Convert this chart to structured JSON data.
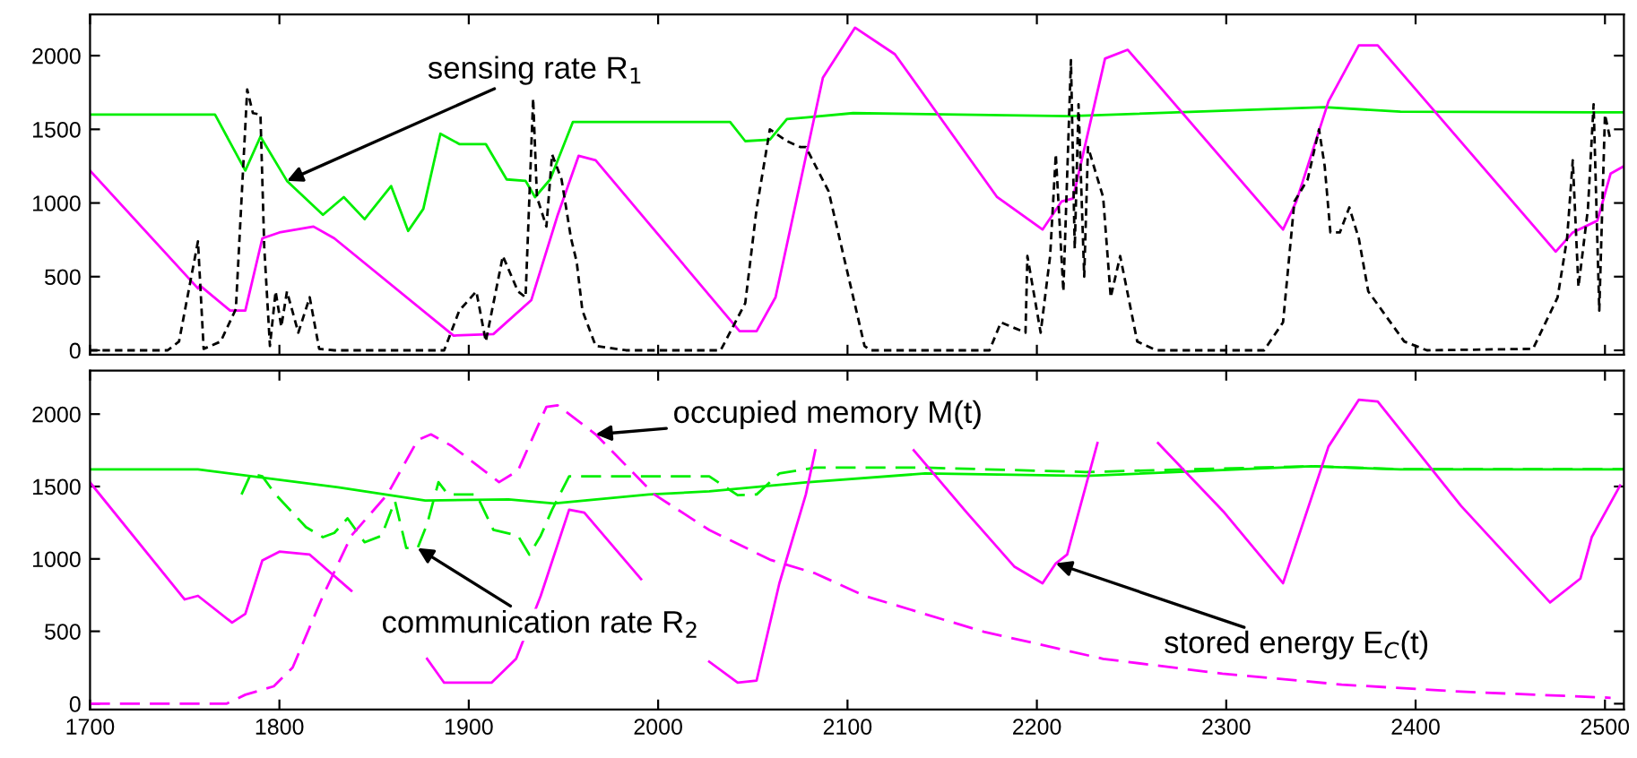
{
  "chart_data": [
    {
      "type": "line",
      "xlim": [
        1700,
        2510
      ],
      "xticks": [
        1700,
        1800,
        1900,
        2000,
        2100,
        2200,
        2300,
        2400,
        2500
      ],
      "ylim": [
        -30,
        2280
      ],
      "yticks": [
        0,
        500,
        1000,
        1500,
        2000
      ],
      "tick_labels": "y",
      "grid": false,
      "legend": false,
      "series": [
        {
          "color": "#00ee00",
          "line_style": "solid",
          "x": [
            1700,
            1766,
            1782,
            1790,
            1804,
            1823,
            1834,
            1845,
            1859,
            1868,
            1876,
            1885,
            1895,
            1909,
            1920,
            1930,
            1935,
            1943,
            1955,
            2038,
            2046,
            2059,
            2068,
            2078,
            2103,
            2217,
            2352,
            2392,
            2503,
            2510
          ],
          "values": [
            1600,
            1600,
            1220,
            1450,
            1150,
            920,
            1040,
            890,
            1115,
            810,
            960,
            1470,
            1400,
            1400,
            1160,
            1150,
            1040,
            1160,
            1550,
            1550,
            1420,
            1430,
            1570,
            1580,
            1610,
            1590,
            1650,
            1620,
            1615,
            1615
          ]
        },
        {
          "color": "#ff00ff",
          "line_style": "solid",
          "x": [
            1700,
            1757,
            1758,
            1774,
            1782,
            1791,
            1800,
            1818,
            1829,
            1892,
            1913,
            1933,
            1947,
            1958,
            1967,
            2043,
            2052,
            2062,
            2087,
            2104,
            2125,
            2179,
            2203,
            2213,
            2219,
            2236,
            2248,
            2330,
            2337,
            2354,
            2370,
            2380,
            2474,
            2483,
            2496,
            2503,
            2510
          ],
          "values": [
            1220,
            420,
            440,
            270,
            270,
            760,
            800,
            840,
            760,
            100,
            110,
            340,
            920,
            1320,
            1290,
            130,
            130,
            360,
            1850,
            2190,
            2010,
            1040,
            820,
            1010,
            1030,
            1980,
            2040,
            820,
            1010,
            1690,
            2070,
            2070,
            670,
            800,
            880,
            1200,
            1250
          ]
        },
        {
          "color": "#000000",
          "line_style": "dotted",
          "x": [
            1700,
            1741,
            1747,
            1757,
            1760,
            1769,
            1777,
            1783,
            1786,
            1790,
            1792,
            1795,
            1798,
            1801,
            1804,
            1810,
            1816,
            1821,
            1829,
            1887,
            1895,
            1904,
            1909,
            1918,
            1926,
            1930,
            1934,
            1936,
            1941,
            1944,
            1949,
            1954,
            1957,
            1960,
            1967,
            1983,
            2033,
            2046,
            2052,
            2059,
            2068,
            2075,
            2078,
            2090,
            2109,
            2112,
            2175,
            2181,
            2194,
            2195,
            2202,
            2207,
            2210,
            2214,
            2218,
            2220,
            2222,
            2225,
            2227,
            2235,
            2239,
            2244,
            2253,
            2263,
            2320,
            2330,
            2336,
            2343,
            2349,
            2352,
            2355,
            2360,
            2365,
            2370,
            2375,
            2394,
            2406,
            2462,
            2475,
            2480,
            2483,
            2486,
            2491,
            2494,
            2497,
            2500,
            2503
          ],
          "values": [
            0,
            0,
            60,
            740,
            10,
            60,
            280,
            1770,
            1610,
            1600,
            700,
            30,
            400,
            160,
            400,
            120,
            360,
            10,
            0,
            0,
            270,
            400,
            60,
            640,
            400,
            360,
            1710,
            1040,
            840,
            1330,
            1160,
            760,
            600,
            270,
            30,
            0,
            0,
            320,
            960,
            1500,
            1420,
            1380,
            1380,
            1080,
            30,
            0,
            0,
            190,
            120,
            640,
            120,
            640,
            1330,
            400,
            1970,
            690,
            1670,
            500,
            1380,
            1040,
            360,
            640,
            60,
            0,
            0,
            190,
            1010,
            1160,
            1500,
            1250,
            800,
            800,
            970,
            760,
            400,
            60,
            0,
            10,
            360,
            760,
            1290,
            430,
            960,
            1670,
            270,
            1600,
            1420
          ]
        }
      ],
      "annotations": [
        {
          "text": "sensing rate R$_{1}$",
          "x": 1804,
          "y": 1150
        }
      ]
    },
    {
      "type": "line",
      "xlim": [
        1700,
        2510
      ],
      "xticks": [
        1700,
        1800,
        1900,
        2000,
        2100,
        2200,
        2300,
        2400,
        2500
      ],
      "ylim": [
        -40,
        2300
      ],
      "yticks": [
        0,
        500,
        1000,
        1500,
        2000
      ],
      "grid": false,
      "legend": false,
      "series": [
        {
          "color": "#00ee00",
          "line_style": "solid",
          "x": [
            1700,
            1757,
            1831,
            1877,
            1921,
            1945,
            1995,
            2027,
            2078,
            2141,
            2226,
            2345,
            2392,
            2510
          ],
          "values": [
            1618,
            1618,
            1494,
            1403,
            1411,
            1383,
            1445,
            1466,
            1528,
            1590,
            1573,
            1640,
            1618,
            1618
          ]
        },
        {
          "color": "#00ee00",
          "line_style": "dashed",
          "x": [
            1780,
            1785,
            1791,
            1798,
            1814,
            1823,
            1829,
            1836,
            1845,
            1854,
            1861,
            1867,
            1873,
            1878,
            1884,
            1889,
            1904,
            1913,
            1926,
            1932,
            1938,
            1944,
            1953,
            2027,
            2042,
            2052,
            2064,
            2083,
            2141,
            2226,
            2345,
            2392,
            2510
          ],
          "values": [
            1445,
            1590,
            1570,
            1445,
            1220,
            1150,
            1180,
            1280,
            1115,
            1160,
            1400,
            1075,
            1075,
            1240,
            1530,
            1445,
            1445,
            1200,
            1160,
            1030,
            1160,
            1340,
            1570,
            1570,
            1440,
            1445,
            1590,
            1630,
            1630,
            1600,
            1640,
            1620,
            1620
          ]
        },
        {
          "color": "#ff00ff",
          "line_style": "solid",
          "x": [
            1700,
            1750,
            1757,
            1775,
            1782,
            1791,
            1800,
            1816,
            1838,
            1860,
            1878,
            1887,
            1912,
            1925,
            1938,
            1953,
            1961,
            1991,
            2010,
            2027,
            2042,
            2052,
            2055,
            2064,
            2078,
            2083,
            2110,
            2135,
            2163,
            2188,
            2203,
            2210,
            2216,
            2232,
            2250,
            2264,
            2299,
            2330,
            2354,
            2370,
            2380,
            2424,
            2471,
            2487,
            2493,
            2508
          ],
          "values": [
            1528,
            720,
            745,
            560,
            620,
            990,
            1050,
            1030,
            780,
            null,
            310,
            145,
            145,
            310,
            745,
            1340,
            1320,
            860,
            null,
            290,
            145,
            160,
            330,
            830,
            1445,
            1750,
            null,
            1750,
            1320,
            948,
            832,
            969,
            1030,
            1800,
            null,
            1800,
            1320,
            832,
            1776,
            2099,
            2087,
            1366,
            699,
            864,
            1150,
            1507
          ]
        },
        {
          "color": "#ff00ff",
          "line_style": "dashed",
          "x": [
            1700,
            1772,
            1782,
            1797,
            1807,
            1823,
            1838,
            1857,
            1873,
            1880,
            1891,
            1916,
            1926,
            1941,
            1947,
            1967,
            1998,
            2027,
            2059,
            2083,
            2109,
            2172,
            2235,
            2298,
            2361,
            2424,
            2503
          ],
          "values": [
            0,
            0,
            62,
            120,
            250,
            745,
            1160,
            1445,
            1820,
            1860,
            1780,
            1530,
            1610,
            2050,
            2060,
            1860,
            1445,
            1200,
            995,
            900,
            745,
            497,
            310,
            207,
            132,
            83,
            41
          ]
        }
      ],
      "annotations": [
        {
          "text": "occupied memory M(t)",
          "x": 1967,
          "y": 1860
        },
        {
          "text": "communication rate R$_{2}$",
          "x": 1873,
          "y": 1075
        },
        {
          "text": "stored energy E$_{C}$(t)",
          "x": 2210,
          "y": 969
        }
      ]
    }
  ]
}
